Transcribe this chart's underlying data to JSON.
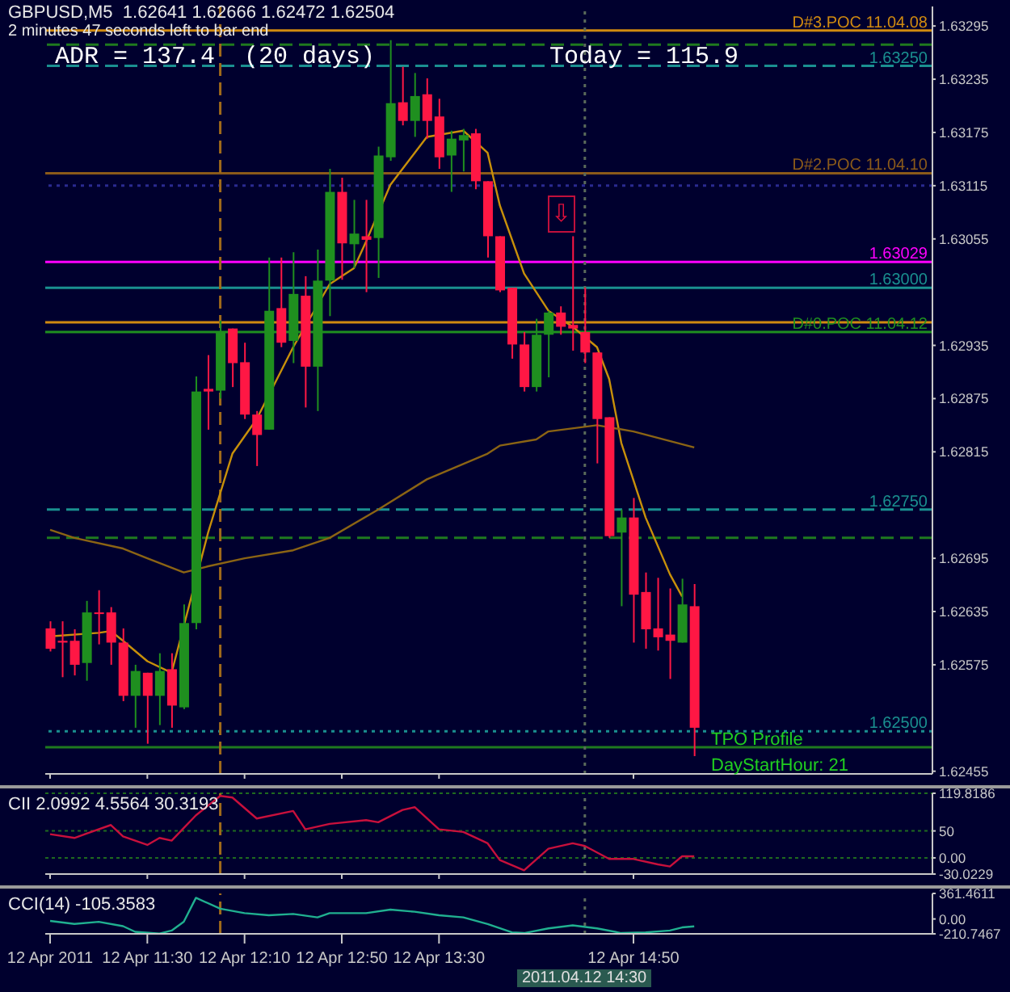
{
  "chart_data": [
    {
      "type": "candlestick",
      "title": "GBPUSD,M5  1.62641 1.62666 1.62472 1.62504",
      "subtitle": "2 minutes 47 seconds left to bar end",
      "x": [
        "2011-04-12T10:50",
        "2011-04-12T10:55",
        "2011-04-12T11:00",
        "2011-04-12T11:05",
        "2011-04-12T11:10",
        "2011-04-12T11:15",
        "2011-04-12T11:20",
        "2011-04-12T11:25",
        "2011-04-12T11:30",
        "2011-04-12T11:35",
        "2011-04-12T11:40",
        "2011-04-12T11:45",
        "2011-04-12T11:50",
        "2011-04-12T11:55",
        "2011-04-12T12:00",
        "2011-04-12T12:05",
        "2011-04-12T12:10",
        "2011-04-12T12:15",
        "2011-04-12T12:20",
        "2011-04-12T12:25",
        "2011-04-12T12:30",
        "2011-04-12T12:35",
        "2011-04-12T12:40",
        "2011-04-12T12:45",
        "2011-04-12T12:50",
        "2011-04-12T12:55",
        "2011-04-12T13:00",
        "2011-04-12T13:05",
        "2011-04-12T13:10",
        "2011-04-12T13:15",
        "2011-04-12T13:20",
        "2011-04-12T13:25",
        "2011-04-12T13:30",
        "2011-04-12T13:35",
        "2011-04-12T13:40",
        "2011-04-12T13:45",
        "2011-04-12T13:50",
        "2011-04-12T13:55",
        "2011-04-12T14:00",
        "2011-04-12T14:05",
        "2011-04-12T14:10",
        "2011-04-12T14:15",
        "2011-04-12T14:20",
        "2011-04-12T14:25",
        "2011-04-12T14:30",
        "2011-04-12T14:35",
        "2011-04-12T14:40",
        "2011-04-12T14:45",
        "2011-04-12T14:50",
        "2011-04-12T14:55",
        "2011-04-12T15:00",
        "2011-04-12T15:05",
        "2011-04-12T15:10",
        "2011-04-12T15:15"
      ],
      "ohlc": [
        [
          1.62616,
          1.62624,
          1.6259,
          1.62593
        ],
        [
          1.62602,
          1.62624,
          1.62561,
          1.626
        ],
        [
          1.62602,
          1.62615,
          1.62563,
          1.62575
        ],
        [
          1.62577,
          1.62647,
          1.62557,
          1.62634
        ],
        [
          1.62634,
          1.62659,
          1.62598,
          1.62633
        ],
        [
          1.62634,
          1.6264,
          1.62575,
          1.626
        ],
        [
          1.626,
          1.62616,
          1.62534,
          1.6254
        ],
        [
          1.6254,
          1.62575,
          1.62504,
          1.62568
        ],
        [
          1.62566,
          1.62566,
          1.62486,
          1.6254
        ],
        [
          1.6254,
          1.62588,
          1.62507,
          1.62568
        ],
        [
          1.6257,
          1.62588,
          1.62504,
          1.62529
        ],
        [
          1.62527,
          1.62643,
          1.62525,
          1.62622
        ],
        [
          1.62622,
          1.629,
          1.62615,
          1.62883
        ],
        [
          1.62886,
          1.62924,
          1.6284,
          1.62883
        ],
        [
          1.62884,
          1.62963,
          1.62875,
          1.6295
        ],
        [
          1.62954,
          1.62954,
          1.62888,
          1.62915
        ],
        [
          1.62916,
          1.62938,
          1.62852,
          1.62857
        ],
        [
          1.62857,
          1.62861,
          1.62799,
          1.62834
        ],
        [
          1.6284,
          1.63034,
          1.6284,
          1.62974
        ],
        [
          1.62977,
          1.63034,
          1.62933,
          1.62938
        ],
        [
          1.6294,
          1.6304,
          1.62915,
          1.62993
        ],
        [
          1.62991,
          1.63013,
          1.62865,
          1.62911
        ],
        [
          1.62911,
          1.63043,
          1.62861,
          1.63008
        ],
        [
          1.63008,
          1.63134,
          1.62968,
          1.63108
        ],
        [
          1.63108,
          1.63124,
          1.63009,
          1.6305
        ],
        [
          1.63049,
          1.63099,
          1.63022,
          1.63061
        ],
        [
          1.63058,
          1.63099,
          1.62995,
          1.63054
        ],
        [
          1.63056,
          1.63159,
          1.63011,
          1.63149
        ],
        [
          1.63147,
          1.63279,
          1.63143,
          1.63208
        ],
        [
          1.63209,
          1.63249,
          1.63183,
          1.63188
        ],
        [
          1.63188,
          1.63242,
          1.6317,
          1.63216
        ],
        [
          1.63218,
          1.63236,
          1.63168,
          1.63188
        ],
        [
          1.63193,
          1.63213,
          1.63134,
          1.63147
        ],
        [
          1.63149,
          1.63177,
          1.63108,
          1.63168
        ],
        [
          1.63166,
          1.63179,
          1.63131,
          1.63172
        ],
        [
          1.63174,
          1.63179,
          1.63111,
          1.6312
        ],
        [
          1.6312,
          1.6312,
          1.63034,
          1.63058
        ],
        [
          1.63058,
          1.63058,
          1.62995,
          1.62997
        ],
        [
          1.63,
          1.63,
          1.6292,
          1.62936
        ],
        [
          1.62936,
          1.6295,
          1.62883,
          1.62888
        ],
        [
          1.62888,
          1.62965,
          1.62883,
          1.62947
        ],
        [
          1.62947,
          1.62974,
          1.62899,
          1.62972
        ],
        [
          1.62972,
          1.62979,
          1.62947,
          1.62956
        ],
        [
          1.62958,
          1.63058,
          1.62929,
          1.62954
        ],
        [
          1.6295,
          1.63,
          1.62915,
          1.62927
        ],
        [
          1.62927,
          1.62927,
          1.62802,
          1.62852
        ],
        [
          1.62854,
          1.62854,
          1.62718,
          1.6272
        ],
        [
          1.62724,
          1.6275,
          1.62641,
          1.62741
        ],
        [
          1.62741,
          1.62763,
          1.626,
          1.62654
        ],
        [
          1.62657,
          1.62679,
          1.62593,
          1.62615
        ],
        [
          1.62616,
          1.62673,
          1.62591,
          1.62606
        ],
        [
          1.62609,
          1.62661,
          1.62559,
          1.62602
        ],
        [
          1.626,
          1.62672,
          1.626,
          1.62643
        ],
        [
          1.62641,
          1.62666,
          1.62472,
          1.62504
        ]
      ],
      "colors": [
        "#ff1744",
        "#ff1744",
        "#ff1744",
        "#1f8f1f",
        "#ff1744",
        "#ff1744",
        "#ff1744",
        "#1f8f1f",
        "#ff1744",
        "#1f8f1f",
        "#ff1744",
        "#1f8f1f",
        "#1f8f1f",
        "#ff1744",
        "#1f8f1f",
        "#ff1744",
        "#ff1744",
        "#ff1744",
        "#1f8f1f",
        "#ff1744",
        "#1f8f1f",
        "#ff1744",
        "#1f8f1f",
        "#1f8f1f",
        "#ff1744",
        "#1f8f1f",
        "#ff1744",
        "#1f8f1f",
        "#1f8f1f",
        "#ff1744",
        "#1f8f1f",
        "#ff1744",
        "#ff1744",
        "#1f8f1f",
        "#1f8f1f",
        "#ff1744",
        "#ff1744",
        "#ff1744",
        "#ff1744",
        "#ff1744",
        "#1f8f1f",
        "#1f8f1f",
        "#ff1744",
        "#ff1744",
        "#ff1744",
        "#ff1744",
        "#ff1744",
        "#1f8f1f",
        "#ff1744",
        "#ff1744",
        "#ff1744",
        "#ff1744",
        "#1f8f1f",
        "#ff1744"
      ],
      "series": [
        {
          "type": "line",
          "color": "#c8900a",
          "x": [
            "2011-04-12T10:50",
            "2011-04-12T11:10",
            "2011-04-12T11:15",
            "2011-04-12T11:20",
            "2011-04-12T11:30",
            "2011-04-12T11:40",
            "2011-04-12T11:45",
            "2011-04-12T11:50",
            "2011-04-12T11:55",
            "2011-04-12T12:05",
            "2011-04-12T12:15",
            "2011-04-12T12:20",
            "2011-04-12T12:30",
            "2011-04-12T12:45",
            "2011-04-12T12:55",
            "2011-04-12T13:00",
            "2011-04-12T13:10",
            "2011-04-12T13:20",
            "2011-04-12T13:25",
            "2011-04-12T13:40",
            "2011-04-12T13:50",
            "2011-04-12T13:55",
            "2011-04-12T14:05",
            "2011-04-12T14:15",
            "2011-04-12T14:25",
            "2011-04-12T14:35",
            "2011-04-12T14:40",
            "2011-04-12T14:45",
            "2011-04-12T14:55",
            "2011-04-12T15:05",
            "2011-04-12T15:10"
          ],
          "values": [
            1.62607,
            1.62611,
            1.62613,
            1.62602,
            1.62579,
            1.62566,
            null,
            null,
            1.62724,
            1.62813,
            1.62852,
            null,
            1.62933,
            1.63004,
            1.63022,
            1.63052,
            1.63116,
            1.63152,
            1.6317,
            1.63177,
            1.63152,
            1.63093,
            1.63016,
            1.62974,
            1.62956,
            1.62933,
            1.62897,
            1.62825,
            1.62741,
            1.62677,
            1.62652
          ]
        },
        {
          "type": "line",
          "color": "#8b6414",
          "x": [
            "2011-04-12T10:50",
            "2011-04-12T11:00",
            "2011-04-12T11:20",
            "2011-04-12T11:30",
            "2011-04-12T11:45",
            "2011-04-12T11:55",
            "2011-04-12T12:10",
            "2011-04-12T12:30",
            "2011-04-12T12:45",
            "2011-04-12T13:05",
            "2011-04-12T13:25",
            "2011-04-12T13:50",
            "2011-04-12T13:55",
            "2011-04-12T14:10",
            "2011-04-12T14:15",
            "2011-04-12T14:35",
            "2011-04-12T14:50",
            "2011-04-12T15:15"
          ],
          "values": [
            1.62727,
            1.62718,
            1.62706,
            1.62695,
            1.62679,
            1.62686,
            1.62695,
            1.62704,
            1.62718,
            1.6275,
            1.62784,
            1.62813,
            1.62822,
            1.62829,
            1.62838,
            1.62845,
            1.62838,
            1.6282
          ]
        }
      ],
      "xlim": [
        "2011-04-12T10:48",
        "2011-04-12T16:53"
      ],
      "ylim": [
        1.62452,
        1.63317
      ],
      "yticks": [
        1.63295,
        1.63235,
        1.63175,
        1.63115,
        1.63055,
        1.62935,
        1.62875,
        1.62815,
        1.62695,
        1.62635,
        1.62575,
        1.62455
      ],
      "tick_labels": "y",
      "ref_lines": [
        {
          "axis": "y",
          "value": 1.6329,
          "label": "D#3.POC 11.04.08",
          "color": "#d08a10"
        },
        {
          "axis": "y",
          "value": 1.63274,
          "color": "#1f7a1f",
          "line_style": "dashed"
        },
        {
          "axis": "y",
          "value": 1.6325,
          "label": "1.63250",
          "color": "#1a9090",
          "line_style": "dashed"
        },
        {
          "axis": "y",
          "value": 1.63129,
          "label": "D#2.POC 11.04.10",
          "color": "#8b5a1a"
        },
        {
          "axis": "y",
          "value": 1.63115,
          "color": "#2a2a90",
          "line_style": "dotted"
        },
        {
          "axis": "y",
          "value": 1.63029,
          "label": "1.63029",
          "color": "#ff00ff"
        },
        {
          "axis": "y",
          "value": 1.63,
          "label": "1.63000",
          "color": "#1a9090"
        },
        {
          "axis": "y",
          "value": 1.62961,
          "color": "#d08a10"
        },
        {
          "axis": "y",
          "value": 1.6295,
          "label": "D#0.POC 11.04.12",
          "color": "#1f8f1f"
        },
        {
          "axis": "y",
          "value": 1.6275,
          "label": "1.62750",
          "color": "#1a9090",
          "line_style": "dashed"
        },
        {
          "axis": "y",
          "value": 1.62718,
          "color": "#1f7a1f",
          "line_style": "dashed"
        },
        {
          "axis": "y",
          "value": 1.625,
          "label": "1.62500",
          "color": "#1a9090",
          "line_style": "dotted"
        },
        {
          "axis": "y",
          "value": 1.62482,
          "color": "#1f7a1f"
        },
        {
          "axis": "x",
          "value": "2011-04-12T12:00",
          "color": "#a06a1a",
          "line_style": "dashed"
        },
        {
          "axis": "x",
          "value": "2011-04-12T14:30",
          "color": "#5a6a5a",
          "line_style": "dotted"
        }
      ],
      "xticks": [
        {
          "value": "2011-04-12T10:50",
          "label": null
        },
        {
          "value": "2011-04-12T11:30",
          "label": null
        },
        {
          "value": "2011-04-12T12:10",
          "label": null
        },
        {
          "value": "2011-04-12T12:50",
          "label": null
        },
        {
          "value": "2011-04-12T13:30",
          "label": null
        },
        {
          "value": "2011-04-12T14:50",
          "label": null
        }
      ],
      "annotations": [
        "ADR = 137.4  (20 days)",
        "Today = 115.9",
        "TPO Profile",
        "DayStartHour: 21",
        "⇩"
      ]
    },
    {
      "type": "line",
      "title": "CII 2.0992 4.5564 30.3193",
      "series": [
        {
          "color": "#c8103c",
          "x": [
            "2011-04-12T10:50",
            "2011-04-12T11:00",
            "2011-04-12T11:05",
            "2011-04-12T11:15",
            "2011-04-12T11:20",
            "2011-04-12T11:30",
            "2011-04-12T11:35",
            "2011-04-12T11:40",
            "2011-04-12T11:50",
            "2011-04-12T12:00",
            "2011-04-12T12:05",
            "2011-04-12T12:15",
            "2011-04-12T12:30",
            "2011-04-12T12:35",
            "2011-04-12T12:45",
            "2011-04-12T13:00",
            "2011-04-12T13:05",
            "2011-04-12T13:15",
            "2011-04-12T13:20",
            "2011-04-12T13:30",
            "2011-04-12T13:40",
            "2011-04-12T13:50",
            "2011-04-12T13:55",
            "2011-04-12T14:05",
            "2011-04-12T14:15",
            "2011-04-12T14:25",
            "2011-04-12T14:30",
            "2011-04-12T14:40",
            "2011-04-12T14:50",
            "2011-04-12T15:00",
            "2011-04-12T15:05",
            "2011-04-12T15:10",
            "2011-04-12T15:15"
          ],
          "values": [
            44,
            37,
            45,
            61,
            40,
            24,
            37,
            32,
            79,
            115,
            112,
            73,
            87,
            53,
            63,
            70,
            66,
            89,
            94,
            53,
            48,
            27,
            -4,
            -23,
            17,
            27,
            22,
            -2,
            -2,
            -12,
            -16,
            3,
            3
          ]
        }
      ],
      "xlim": [
        "2011-04-12T10:48",
        "2011-04-12T16:53"
      ],
      "ylim": [
        -30.0229,
        119.8186
      ],
      "yticks": [
        119.8186,
        50,
        {
          "value": 0,
          "label": "0.00"
        },
        -30.0229
      ],
      "grid": "y",
      "tick_labels": "y",
      "xticks": [
        {
          "value": "2011-04-12T10:50",
          "label": null
        },
        {
          "value": "2011-04-12T11:30",
          "label": null
        },
        {
          "value": "2011-04-12T12:10",
          "label": null
        },
        {
          "value": "2011-04-12T12:50",
          "label": null
        },
        {
          "value": "2011-04-12T13:30",
          "label": null
        },
        {
          "value": "2011-04-12T14:50",
          "label": null
        }
      ],
      "ref_lines": [
        {
          "axis": "x",
          "value": "2011-04-12T12:00",
          "color": "#a06a1a",
          "line_style": "dashed"
        },
        {
          "axis": "x",
          "value": "2011-04-12T14:30",
          "color": "#5a6a5a",
          "line_style": "dotted"
        }
      ]
    },
    {
      "type": "line",
      "title": "CCI(14) -105.3583",
      "series": [
        {
          "color": "#20b090",
          "x": [
            "2011-04-12T10:50",
            "2011-04-12T11:00",
            "2011-04-12T11:10",
            "2011-04-12T11:20",
            "2011-04-12T11:25",
            "2011-04-12T11:35",
            "2011-04-12T11:40",
            "2011-04-12T11:45",
            "2011-04-12T11:50",
            "2011-04-12T12:00",
            "2011-04-12T12:10",
            "2011-04-12T12:20",
            "2011-04-12T12:30",
            "2011-04-12T12:40",
            "2011-04-12T12:45",
            "2011-04-12T13:00",
            "2011-04-12T13:10",
            "2011-04-12T13:20",
            "2011-04-12T13:30",
            "2011-04-12T13:40",
            "2011-04-12T13:50",
            "2011-04-12T14:00",
            "2011-04-12T14:05",
            "2011-04-12T14:15",
            "2011-04-12T14:25",
            "2011-04-12T14:35",
            "2011-04-12T14:45",
            "2011-04-12T14:55",
            "2011-04-12T15:05",
            "2011-04-12T15:10",
            "2011-04-12T15:15"
          ],
          "values": [
            -28,
            -71,
            -40,
            -102,
            -182,
            -207,
            -164,
            -40,
            300,
            145,
            83,
            53,
            71,
            22,
            83,
            83,
            133,
            102,
            53,
            22,
            -71,
            -190,
            -200,
            -133,
            -90,
            -133,
            -200,
            -190,
            -164,
            -120,
            -105
          ]
        }
      ],
      "xlim": [
        "2011-04-12T10:48",
        "2011-04-12T16:53"
      ],
      "ylim": [
        -210.7467,
        361.4611
      ],
      "yticks": [
        361.4611,
        {
          "value": 0,
          "label": "0.00"
        },
        -210.7467
      ],
      "xticks": [
        {
          "value": "2011-04-12T10:50",
          "label": "12 Apr 2011"
        },
        {
          "value": "2011-04-12T11:30",
          "label": "12 Apr 11:30"
        },
        {
          "value": "2011-04-12T12:10",
          "label": "12 Apr 12:10"
        },
        {
          "value": "2011-04-12T12:50",
          "label": "12 Apr 12:50"
        },
        {
          "value": "2011-04-12T13:30",
          "label": "12 Apr 13:30"
        },
        {
          "value": "2011-04-12T14:50",
          "label": "12 Apr 14:50"
        }
      ],
      "ref_lines": [
        {
          "axis": "x",
          "value": "2011-04-12T12:00",
          "color": "#a06a1a",
          "line_style": "dashed"
        },
        {
          "axis": "x",
          "value": "2011-04-12T14:30",
          "color": "#5a6a5a",
          "line_style": "dotted"
        }
      ],
      "annotations": [
        "2011.04.12 14:30"
      ]
    }
  ]
}
